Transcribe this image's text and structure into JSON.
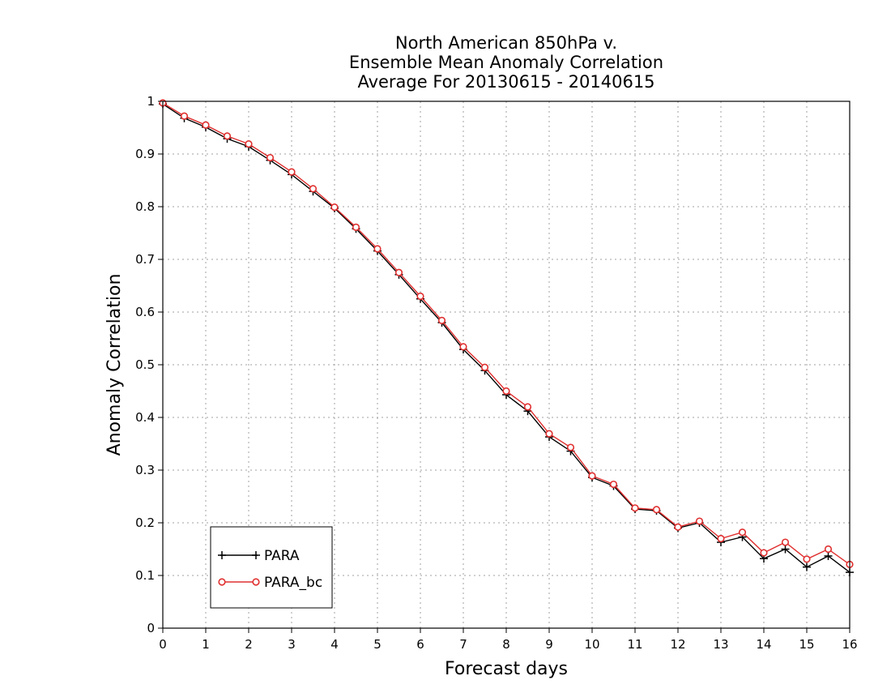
{
  "chart_data": {
    "type": "line",
    "title_lines": [
      "North American 850hPa v.",
      "Ensemble Mean Anomaly Correlation",
      "Average For 20130615 - 20140615"
    ],
    "xlabel": "Forecast days",
    "ylabel": "Anomaly Correlation",
    "xlim": [
      0,
      16
    ],
    "ylim": [
      0,
      1
    ],
    "x_ticks": [
      "0",
      "1",
      "2",
      "3",
      "4",
      "5",
      "6",
      "7",
      "8",
      "9",
      "10",
      "11",
      "12",
      "13",
      "14",
      "15",
      "16"
    ],
    "y_ticks": [
      "0",
      "0.1",
      "0.2",
      "0.3",
      "0.4",
      "0.5",
      "0.6",
      "0.7",
      "0.8",
      "0.9",
      "1"
    ],
    "grid": true,
    "legend_position": "bottom-left",
    "x": [
      0,
      0.5,
      1,
      1.5,
      2,
      2.5,
      3,
      3.5,
      4,
      4.5,
      5,
      5.5,
      6,
      6.5,
      7,
      7.5,
      8,
      8.5,
      9,
      9.5,
      10,
      10.5,
      11,
      11.5,
      12,
      12.5,
      13,
      13.5,
      14,
      14.5,
      15,
      15.5,
      16
    ],
    "series": [
      {
        "name": "PARA",
        "color": "#000000",
        "marker": "plus",
        "values": [
          0.995,
          0.968,
          0.951,
          0.929,
          0.914,
          0.888,
          0.861,
          0.829,
          0.797,
          0.758,
          0.716,
          0.671,
          0.625,
          0.58,
          0.529,
          0.489,
          0.443,
          0.412,
          0.363,
          0.336,
          0.286,
          0.27,
          0.226,
          0.223,
          0.19,
          0.2,
          0.163,
          0.173,
          0.132,
          0.15,
          0.116,
          0.137,
          0.106
        ]
      },
      {
        "name": "PARA_bc",
        "color": "#e03030",
        "marker": "circle",
        "values": [
          0.997,
          0.972,
          0.955,
          0.934,
          0.919,
          0.893,
          0.866,
          0.834,
          0.799,
          0.761,
          0.72,
          0.675,
          0.63,
          0.584,
          0.534,
          0.495,
          0.45,
          0.42,
          0.369,
          0.343,
          0.289,
          0.273,
          0.228,
          0.225,
          0.192,
          0.203,
          0.17,
          0.182,
          0.143,
          0.163,
          0.131,
          0.15,
          0.121
        ]
      }
    ]
  }
}
